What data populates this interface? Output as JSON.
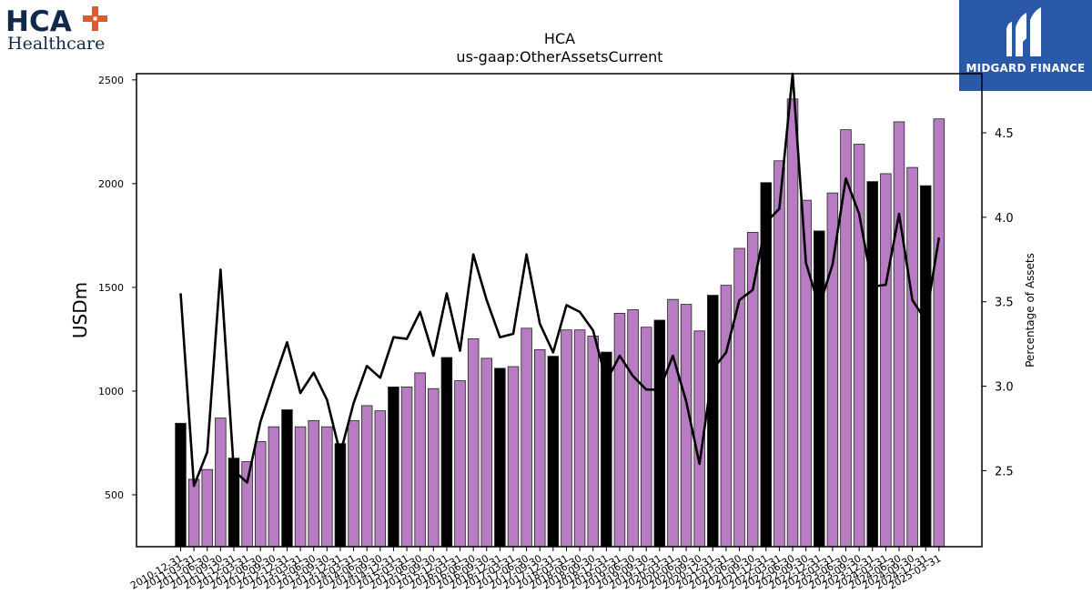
{
  "logos": {
    "left": {
      "line1": "HCA",
      "line2": "Healthcare",
      "cross_color": "#e05a2a",
      "text_color": "#13294b"
    },
    "right": {
      "text": "MIDGARD FINANCE",
      "bg_color": "#2a59a8"
    }
  },
  "colors": {
    "bar_q4": "#000000",
    "bar_other": "#b77cc2",
    "line": "#000000"
  },
  "chart_data": {
    "type": "bar",
    "title": "HCA",
    "subtitle": "us-gaap:OtherAssetsCurrent",
    "ylabel": "USDm",
    "y2label": "Percentage of Assets",
    "ylim": [
      250,
      2530
    ],
    "y2lim": [
      2.05,
      4.85
    ],
    "yticks": [
      500,
      1000,
      1500,
      2000,
      2500
    ],
    "y2ticks": [
      "2.5",
      "3.0",
      "3.5",
      "4.0",
      "4.5"
    ],
    "categories": [
      "2010-12-31",
      "2011-03-31",
      "2011-06-30",
      "2011-09-30",
      "2011-12-31",
      "2012-03-31",
      "2012-06-30",
      "2012-09-30",
      "2012-12-31",
      "2013-03-31",
      "2013-06-30",
      "2013-09-30",
      "2013-12-31",
      "2014-03-31",
      "2014-06-30",
      "2014-09-30",
      "2014-12-31",
      "2015-03-31",
      "2015-06-30",
      "2015-09-30",
      "2015-12-31",
      "2016-03-31",
      "2016-06-30",
      "2016-09-30",
      "2016-12-31",
      "2017-03-31",
      "2017-06-30",
      "2017-09-30",
      "2017-12-31",
      "2018-03-31",
      "2018-06-30",
      "2018-09-30",
      "2018-12-31",
      "2019-03-31",
      "2019-06-30",
      "2019-09-30",
      "2019-12-31",
      "2020-03-31",
      "2020-06-30",
      "2020-09-30",
      "2020-12-31",
      "2021-03-31",
      "2021-06-30",
      "2021-09-30",
      "2021-12-31",
      "2022-03-31",
      "2022-06-30",
      "2022-09-30",
      "2022-12-31",
      "2023-03-31",
      "2023-06-30",
      "2023-09-30",
      "2023-12-31",
      "2024-03-31",
      "2024-06-30",
      "2024-09-30",
      "2024-12-31",
      "2025-03-31"
    ],
    "series": [
      {
        "kind": "bar",
        "values": [
          845,
          575,
          622,
          870,
          677,
          660,
          757,
          828,
          910,
          828,
          858,
          828,
          747,
          858,
          930,
          905,
          1020,
          1020,
          1088,
          1012,
          1162,
          1050,
          1252,
          1158,
          1110,
          1118,
          1303,
          1200,
          1168,
          1295,
          1295,
          1265,
          1188,
          1375,
          1392,
          1308,
          1342,
          1442,
          1418,
          1290,
          1462,
          1510,
          1688,
          1765,
          2005,
          2110,
          2408,
          1920,
          1772,
          1955,
          2260,
          2190,
          2010,
          2048,
          2298,
          2078,
          1990,
          2312
        ]
      },
      {
        "kind": "line",
        "axis": "right",
        "values": [
          3.55,
          2.41,
          2.61,
          3.69,
          2.5,
          2.43,
          2.79,
          3.03,
          3.26,
          2.96,
          3.08,
          2.92,
          2.6,
          2.9,
          3.12,
          3.05,
          3.29,
          3.28,
          3.44,
          3.18,
          3.55,
          3.21,
          3.78,
          3.51,
          3.29,
          3.31,
          3.78,
          3.37,
          3.2,
          3.48,
          3.44,
          3.33,
          3.03,
          3.18,
          3.06,
          2.98,
          2.98,
          3.18,
          2.91,
          2.54,
          3.1,
          3.2,
          3.51,
          3.57,
          3.97,
          4.05,
          4.85,
          3.73,
          3.47,
          3.72,
          4.23,
          4.02,
          3.59,
          3.6,
          4.02,
          3.51,
          3.39,
          3.88
        ]
      }
    ],
    "bar_highlight": "Q4 (December) bars are drawn in black, all other quarters in purple"
  }
}
